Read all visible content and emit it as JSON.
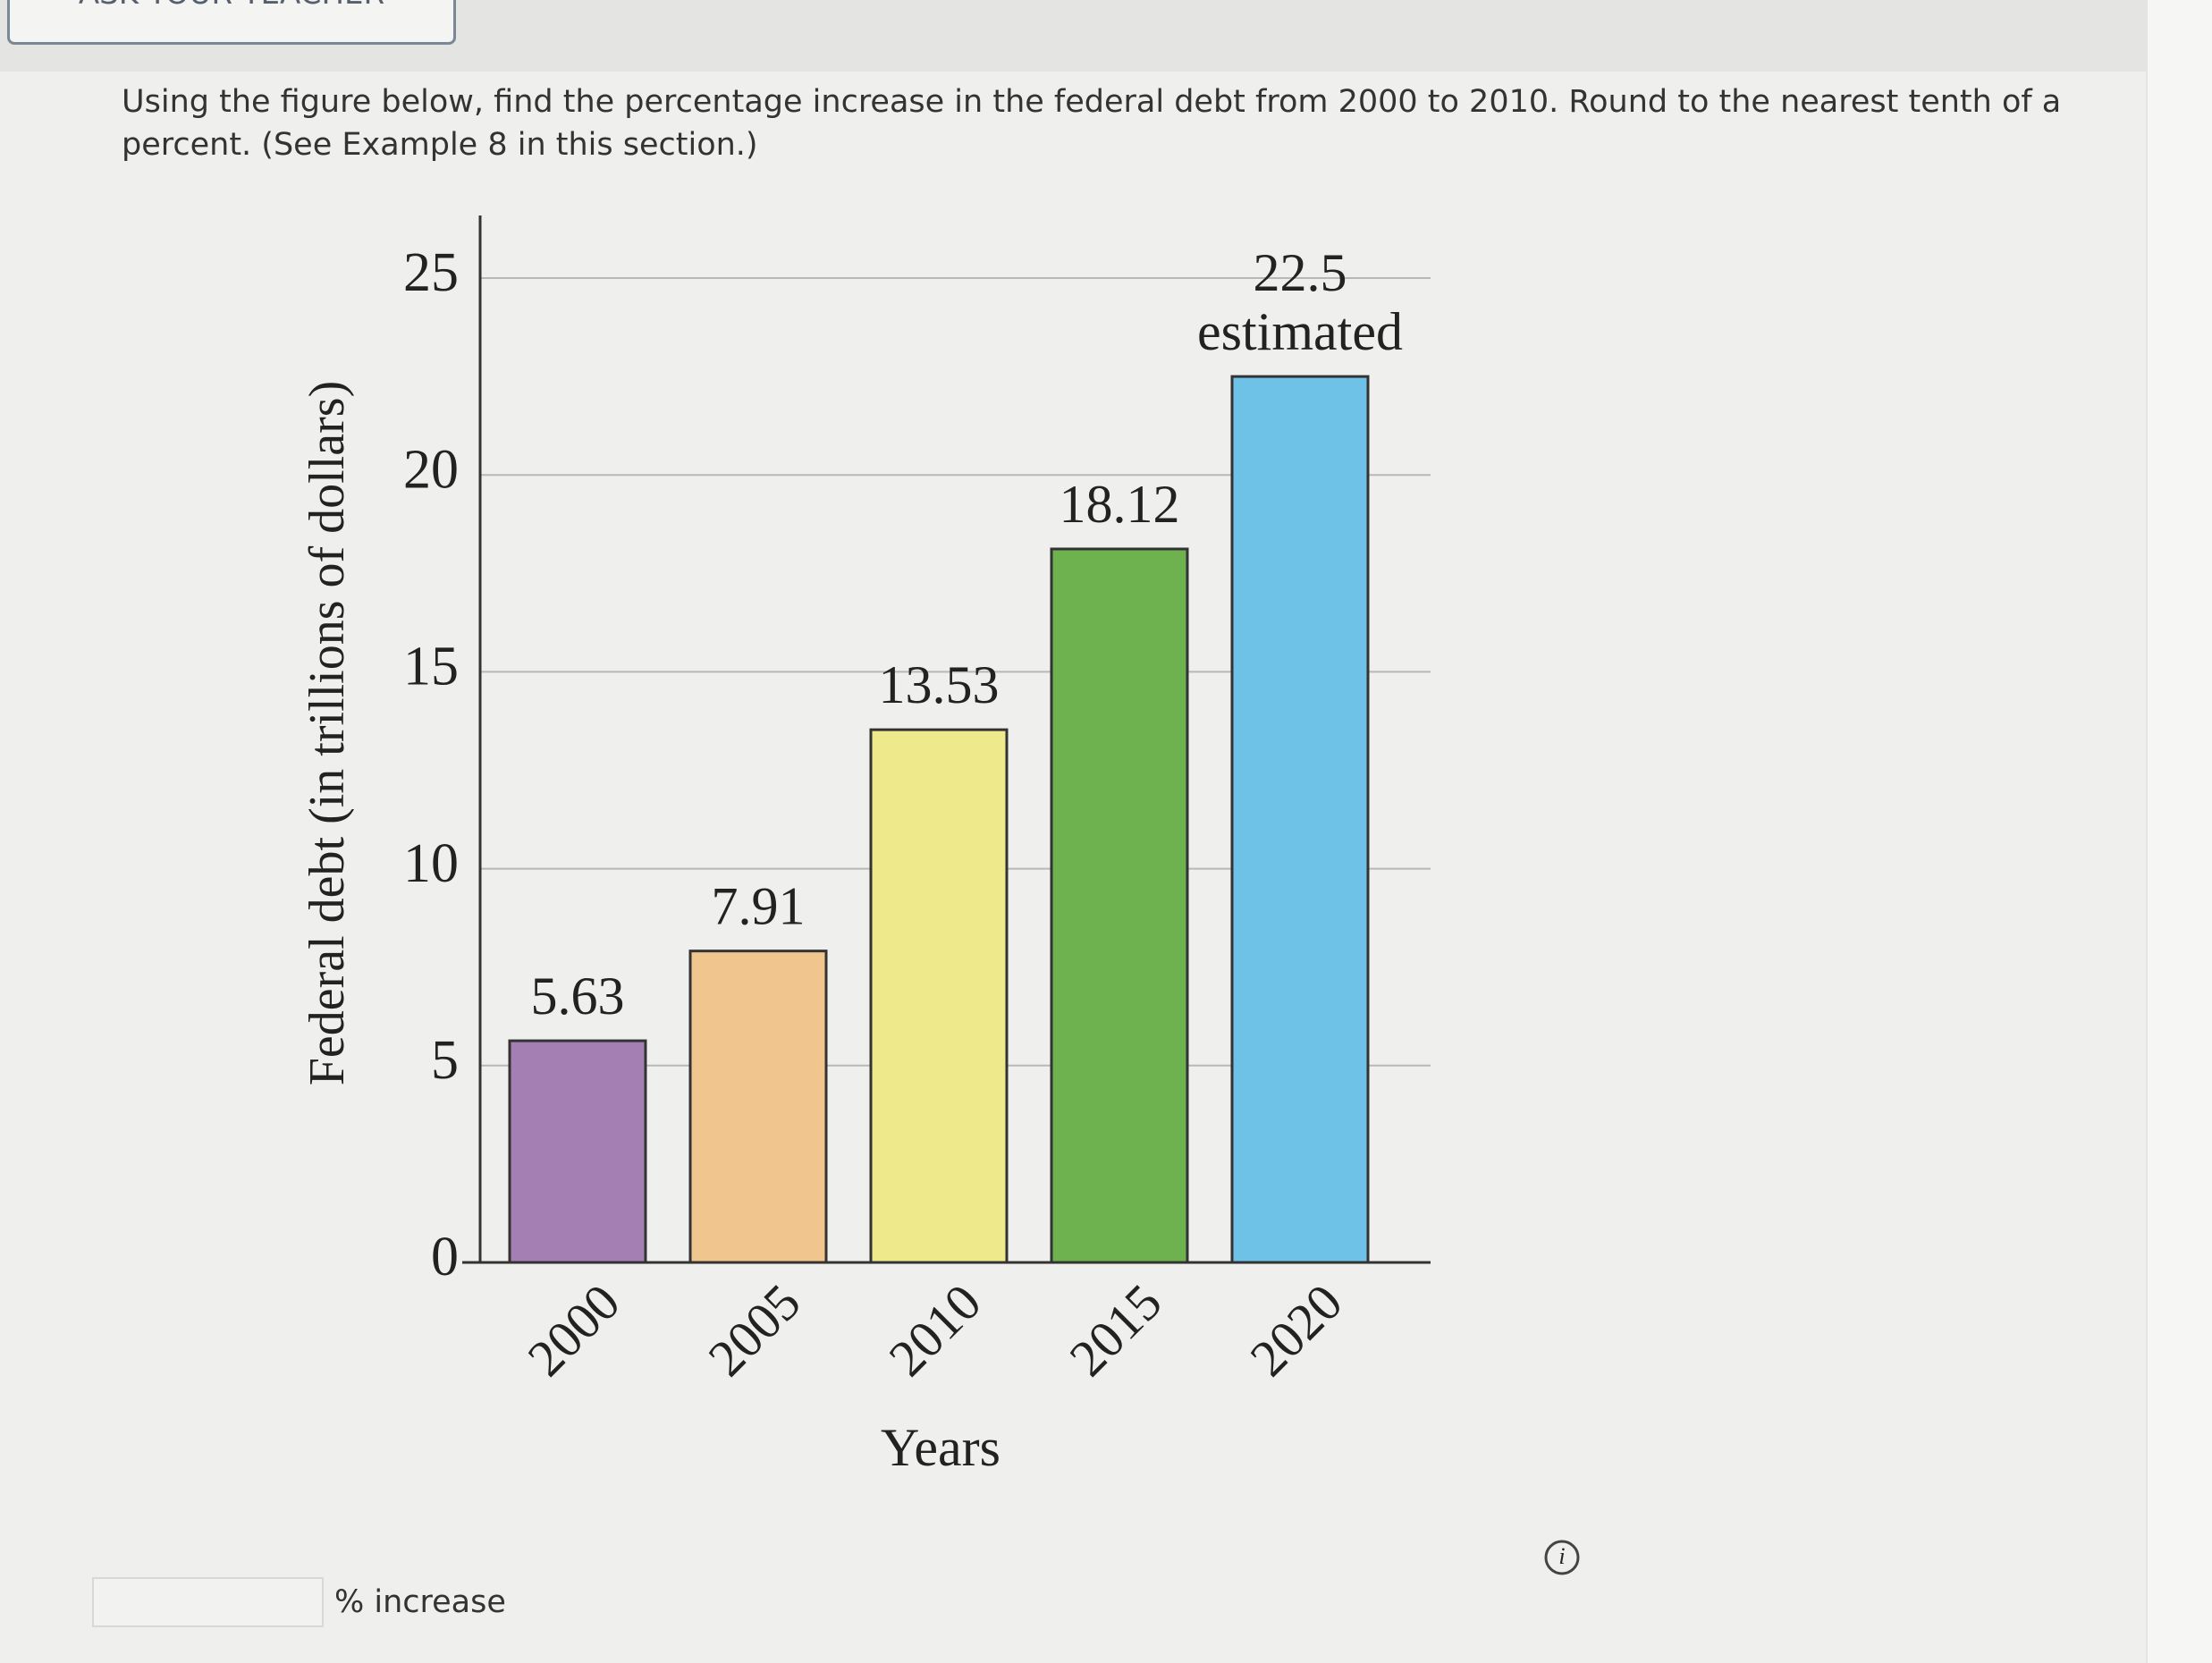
{
  "header": {
    "button": "ASK YOUR TEACHER"
  },
  "question": "Using the figure below, find the percentage increase in the federal debt from 2000 to 2010. Round to the nearest tenth of a percent. (See Example 8 in this section.)",
  "chart_data": {
    "type": "bar",
    "y_label": "Federal debt (in trillions of dollars)",
    "x_label": "Years",
    "categories": [
      "2000",
      "2005",
      "2010",
      "2015",
      "2020"
    ],
    "values": [
      5.63,
      7.91,
      13.53,
      18.12,
      22.5
    ],
    "colors": [
      "#a37fb4",
      "#f1c58e",
      "#eee98a",
      "#6db24e",
      "#6ec2e8"
    ],
    "annotation": "estimated",
    "ylim": [
      0,
      25
    ],
    "yticks": [
      0,
      5,
      10,
      15,
      20,
      25
    ],
    "grid": true
  },
  "answer": {
    "suffix": "% increase"
  }
}
